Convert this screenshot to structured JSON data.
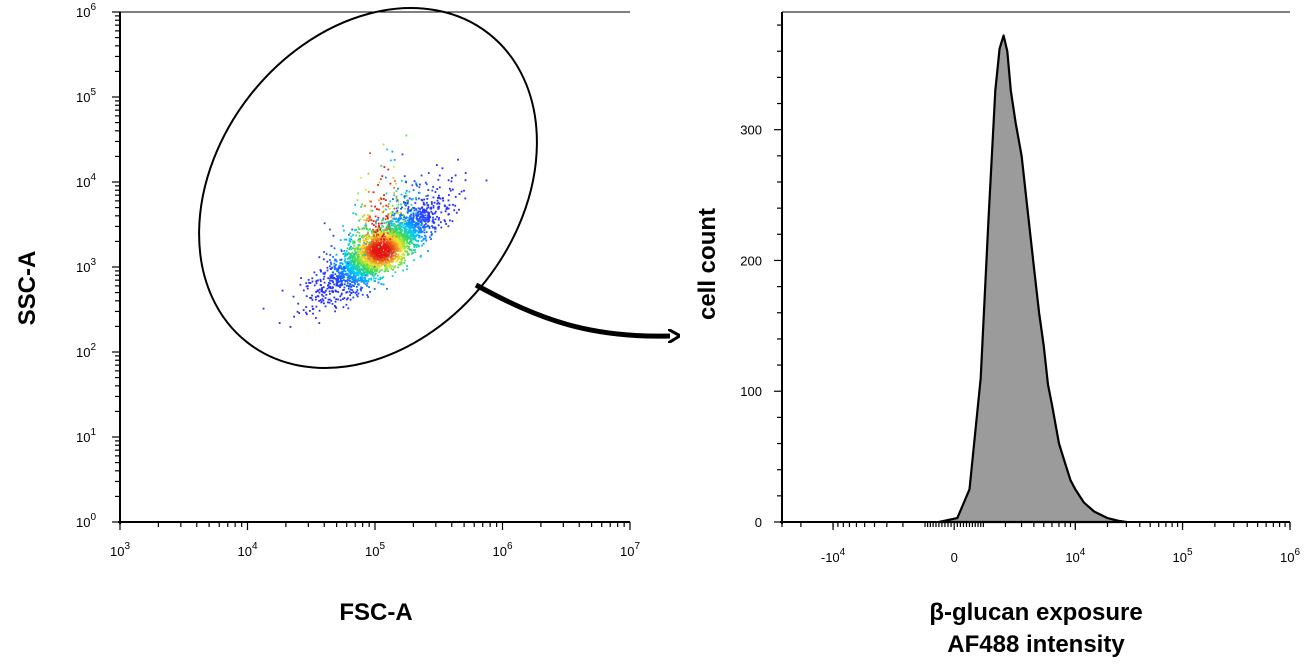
{
  "chart_data": [
    {
      "type": "scatter",
      "xlabel": "FSC-A",
      "ylabel": "SSC-A",
      "xscale": "log",
      "yscale": "log",
      "xlim": [
        1000,
        10000000
      ],
      "ylim": [
        1,
        1000000
      ],
      "x_ticks": [
        {
          "base": "10",
          "exp": "3",
          "value": 1000
        },
        {
          "base": "10",
          "exp": "4",
          "value": 10000
        },
        {
          "base": "10",
          "exp": "5",
          "value": 100000
        },
        {
          "base": "10",
          "exp": "6",
          "value": 1000000
        },
        {
          "base": "10",
          "exp": "7",
          "value": 10000000
        }
      ],
      "y_ticks": [
        {
          "base": "10",
          "exp": "0",
          "value": 1
        },
        {
          "base": "10",
          "exp": "1",
          "value": 10
        },
        {
          "base": "10",
          "exp": "2",
          "value": 100
        },
        {
          "base": "10",
          "exp": "3",
          "value": 1000
        },
        {
          "base": "10",
          "exp": "4",
          "value": 10000
        },
        {
          "base": "10",
          "exp": "5",
          "value": 100000
        },
        {
          "base": "10",
          "exp": "6",
          "value": 1000000
        }
      ],
      "population": {
        "center": [
          110000,
          1600
        ],
        "fsc_log_sd": 0.22,
        "ssc_log_sd_along": 0.3,
        "correlation": 0.8,
        "approx_events": 3000,
        "color_scale": "density: blue-cyan-green-yellow-red"
      },
      "gate": {
        "shape": "ellipse",
        "center": [
          55000,
          5500
        ]
      },
      "grid": false
    },
    {
      "type": "area",
      "xlabel_lines": [
        "β-glucan exposure",
        "AF488 intensity"
      ],
      "ylabel": "cell count",
      "xscale": "biexponential",
      "ylim": [
        0,
        390
      ],
      "x_ticks": [
        {
          "base": "-10",
          "exp": "4",
          "value": -10000
        },
        {
          "base": "0",
          "exp": "",
          "value": 0
        },
        {
          "base": "10",
          "exp": "4",
          "value": 10000
        },
        {
          "base": "10",
          "exp": "5",
          "value": 100000
        },
        {
          "base": "10",
          "exp": "6",
          "value": 1000000
        }
      ],
      "y_ticks": [
        0,
        100,
        200,
        300
      ],
      "x": [
        -500,
        100,
        500,
        900,
        1200,
        1500,
        1700,
        1900,
        2100,
        2300,
        2600,
        3000,
        3500,
        4000,
        4500,
        5000,
        5500,
        6000,
        7000,
        8000,
        9000,
        10000,
        12000,
        15000,
        20000,
        25000,
        30000
      ],
      "y": [
        0,
        3,
        25,
        110,
        230,
        330,
        362,
        372,
        360,
        330,
        305,
        280,
        235,
        195,
        160,
        135,
        105,
        90,
        60,
        45,
        32,
        25,
        15,
        8,
        3,
        1,
        0
      ],
      "fill_color": "#9b9b9b",
      "line_color": "#000000",
      "grid": false
    }
  ]
}
